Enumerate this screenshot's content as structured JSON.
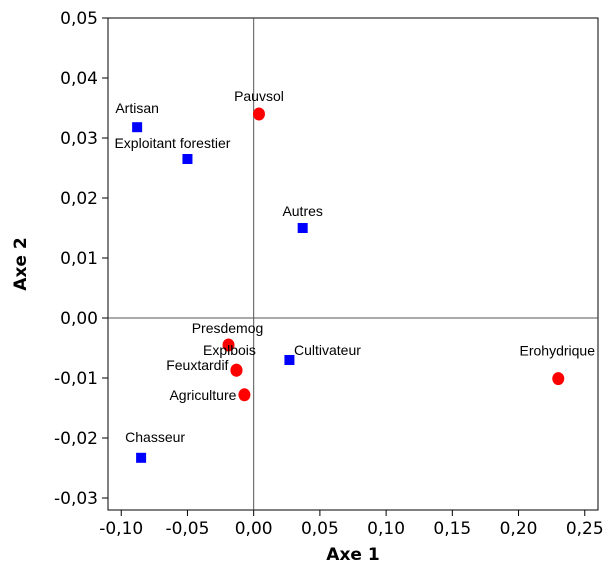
{
  "chart_data": {
    "type": "scatter",
    "xlabel": "Axe 1",
    "ylabel": "Axe 2",
    "xlim": [
      -0.11,
      0.26
    ],
    "ylim": [
      -0.032,
      0.05
    ],
    "x_ticks": [
      {
        "value": -0.1,
        "label": "-0,10"
      },
      {
        "value": -0.05,
        "label": "-0,05"
      },
      {
        "value": 0.0,
        "label": "0,00"
      },
      {
        "value": 0.05,
        "label": "0,05"
      },
      {
        "value": 0.1,
        "label": "0,10"
      },
      {
        "value": 0.15,
        "label": "0,15"
      },
      {
        "value": 0.2,
        "label": "0,20"
      },
      {
        "value": 0.25,
        "label": "0,25"
      }
    ],
    "y_ticks": [
      {
        "value": -0.03,
        "label": "-0,03"
      },
      {
        "value": -0.02,
        "label": "-0,02"
      },
      {
        "value": -0.01,
        "label": "-0,01"
      },
      {
        "value": 0.0,
        "label": "0,00"
      },
      {
        "value": 0.01,
        "label": "0,01"
      },
      {
        "value": 0.02,
        "label": "0,02"
      },
      {
        "value": 0.03,
        "label": "0,03"
      },
      {
        "value": 0.04,
        "label": "0,04"
      },
      {
        "value": 0.05,
        "label": "0,05"
      }
    ],
    "reference_lines": {
      "x": 0,
      "y": 0
    },
    "grid": false,
    "series": [
      {
        "marker": "square",
        "color": "#0000ff",
        "points": [
          {
            "label": "Artisan",
            "x": -0.088,
            "y": 0.0318
          },
          {
            "label": "Exploitant forestier",
            "x": -0.05,
            "y": 0.0265
          },
          {
            "label": "Autres",
            "x": 0.037,
            "y": 0.015
          },
          {
            "label": "Cultivateur",
            "x": 0.027,
            "y": -0.007
          },
          {
            "label": "Chasseur",
            "x": -0.085,
            "y": -0.0233
          }
        ]
      },
      {
        "marker": "circle",
        "color": "#ff0000",
        "points": [
          {
            "label": "Pauvsol",
            "x": 0.004,
            "y": 0.034
          },
          {
            "label": "Presdemog",
            "x": -0.019,
            "y": -0.0045
          },
          {
            "label": "Explbois",
            "x": -0.013,
            "y": -0.0087
          },
          {
            "label": "Feuxtardif",
            "x": -0.013,
            "y": -0.0087
          },
          {
            "label": "Agriculture",
            "x": -0.007,
            "y": -0.0128
          },
          {
            "label": "Erohydrique",
            "x": 0.23,
            "y": -0.0101
          }
        ]
      }
    ]
  }
}
